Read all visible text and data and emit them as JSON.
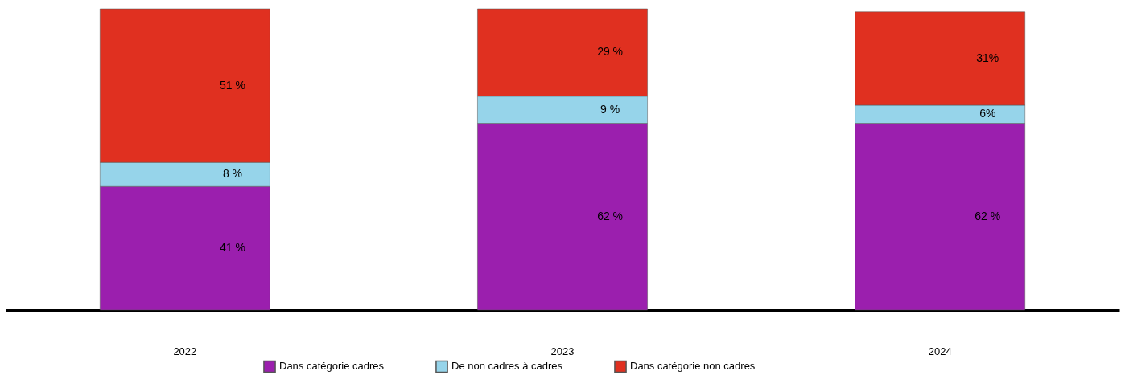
{
  "chart_data": {
    "type": "bar",
    "stacked": true,
    "categories": [
      "2022",
      "2023",
      "2024"
    ],
    "series": [
      {
        "name": "Dans catégorie cadres",
        "color": "#9b1fae",
        "values": [
          41,
          62,
          62
        ],
        "value_labels": [
          "41 %",
          "62 %",
          "62 %"
        ]
      },
      {
        "name": "De non cadres à cadres",
        "color": "#96d4ea",
        "values": [
          8,
          9,
          6
        ],
        "value_labels": [
          "8 %",
          "9 %",
          "6%"
        ]
      },
      {
        "name": "Dans catégorie non cadres",
        "color": "#e03020",
        "values": [
          51,
          29,
          31
        ],
        "value_labels": [
          "51 %",
          "29 %",
          "31%"
        ]
      }
    ],
    "legend": "bottom",
    "grid": false
  }
}
